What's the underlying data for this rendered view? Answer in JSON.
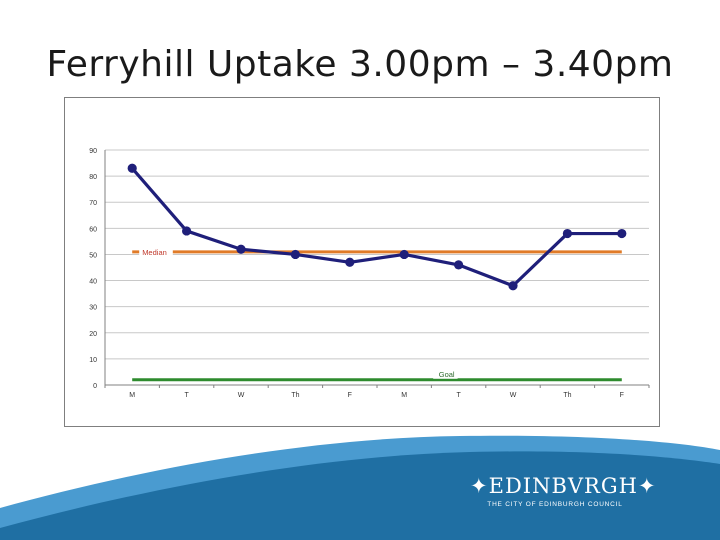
{
  "slide": {
    "title": "Ferryhill Uptake 3.00pm – 3.40pm"
  },
  "logo": {
    "wordmark": "EDINBVRGH",
    "star_glyph": "✦",
    "subtitle": "THE CITY OF EDINBURGH COUNCIL"
  },
  "colors": {
    "series": "#1f1f7a",
    "median": "#e07b28",
    "goal": "#2e8b2e",
    "footer_wave": "#1f6fa3",
    "footer_wave_light": "#4a9bd0"
  },
  "chart_data": {
    "type": "line",
    "categories": [
      "M",
      "T",
      "W",
      "Th",
      "F",
      "M",
      "T",
      "W",
      "Th",
      "F"
    ],
    "ylim": [
      0,
      90
    ],
    "yticks": [
      0,
      10,
      20,
      30,
      40,
      50,
      60,
      70,
      80,
      90
    ],
    "grid": true,
    "series": [
      {
        "values": [
          83,
          59,
          52,
          50,
          47,
          50,
          46,
          38,
          58,
          58
        ]
      }
    ],
    "reference_lines": [
      {
        "name": "Median",
        "value": 51
      },
      {
        "name": "Goal",
        "value": 2
      }
    ]
  }
}
